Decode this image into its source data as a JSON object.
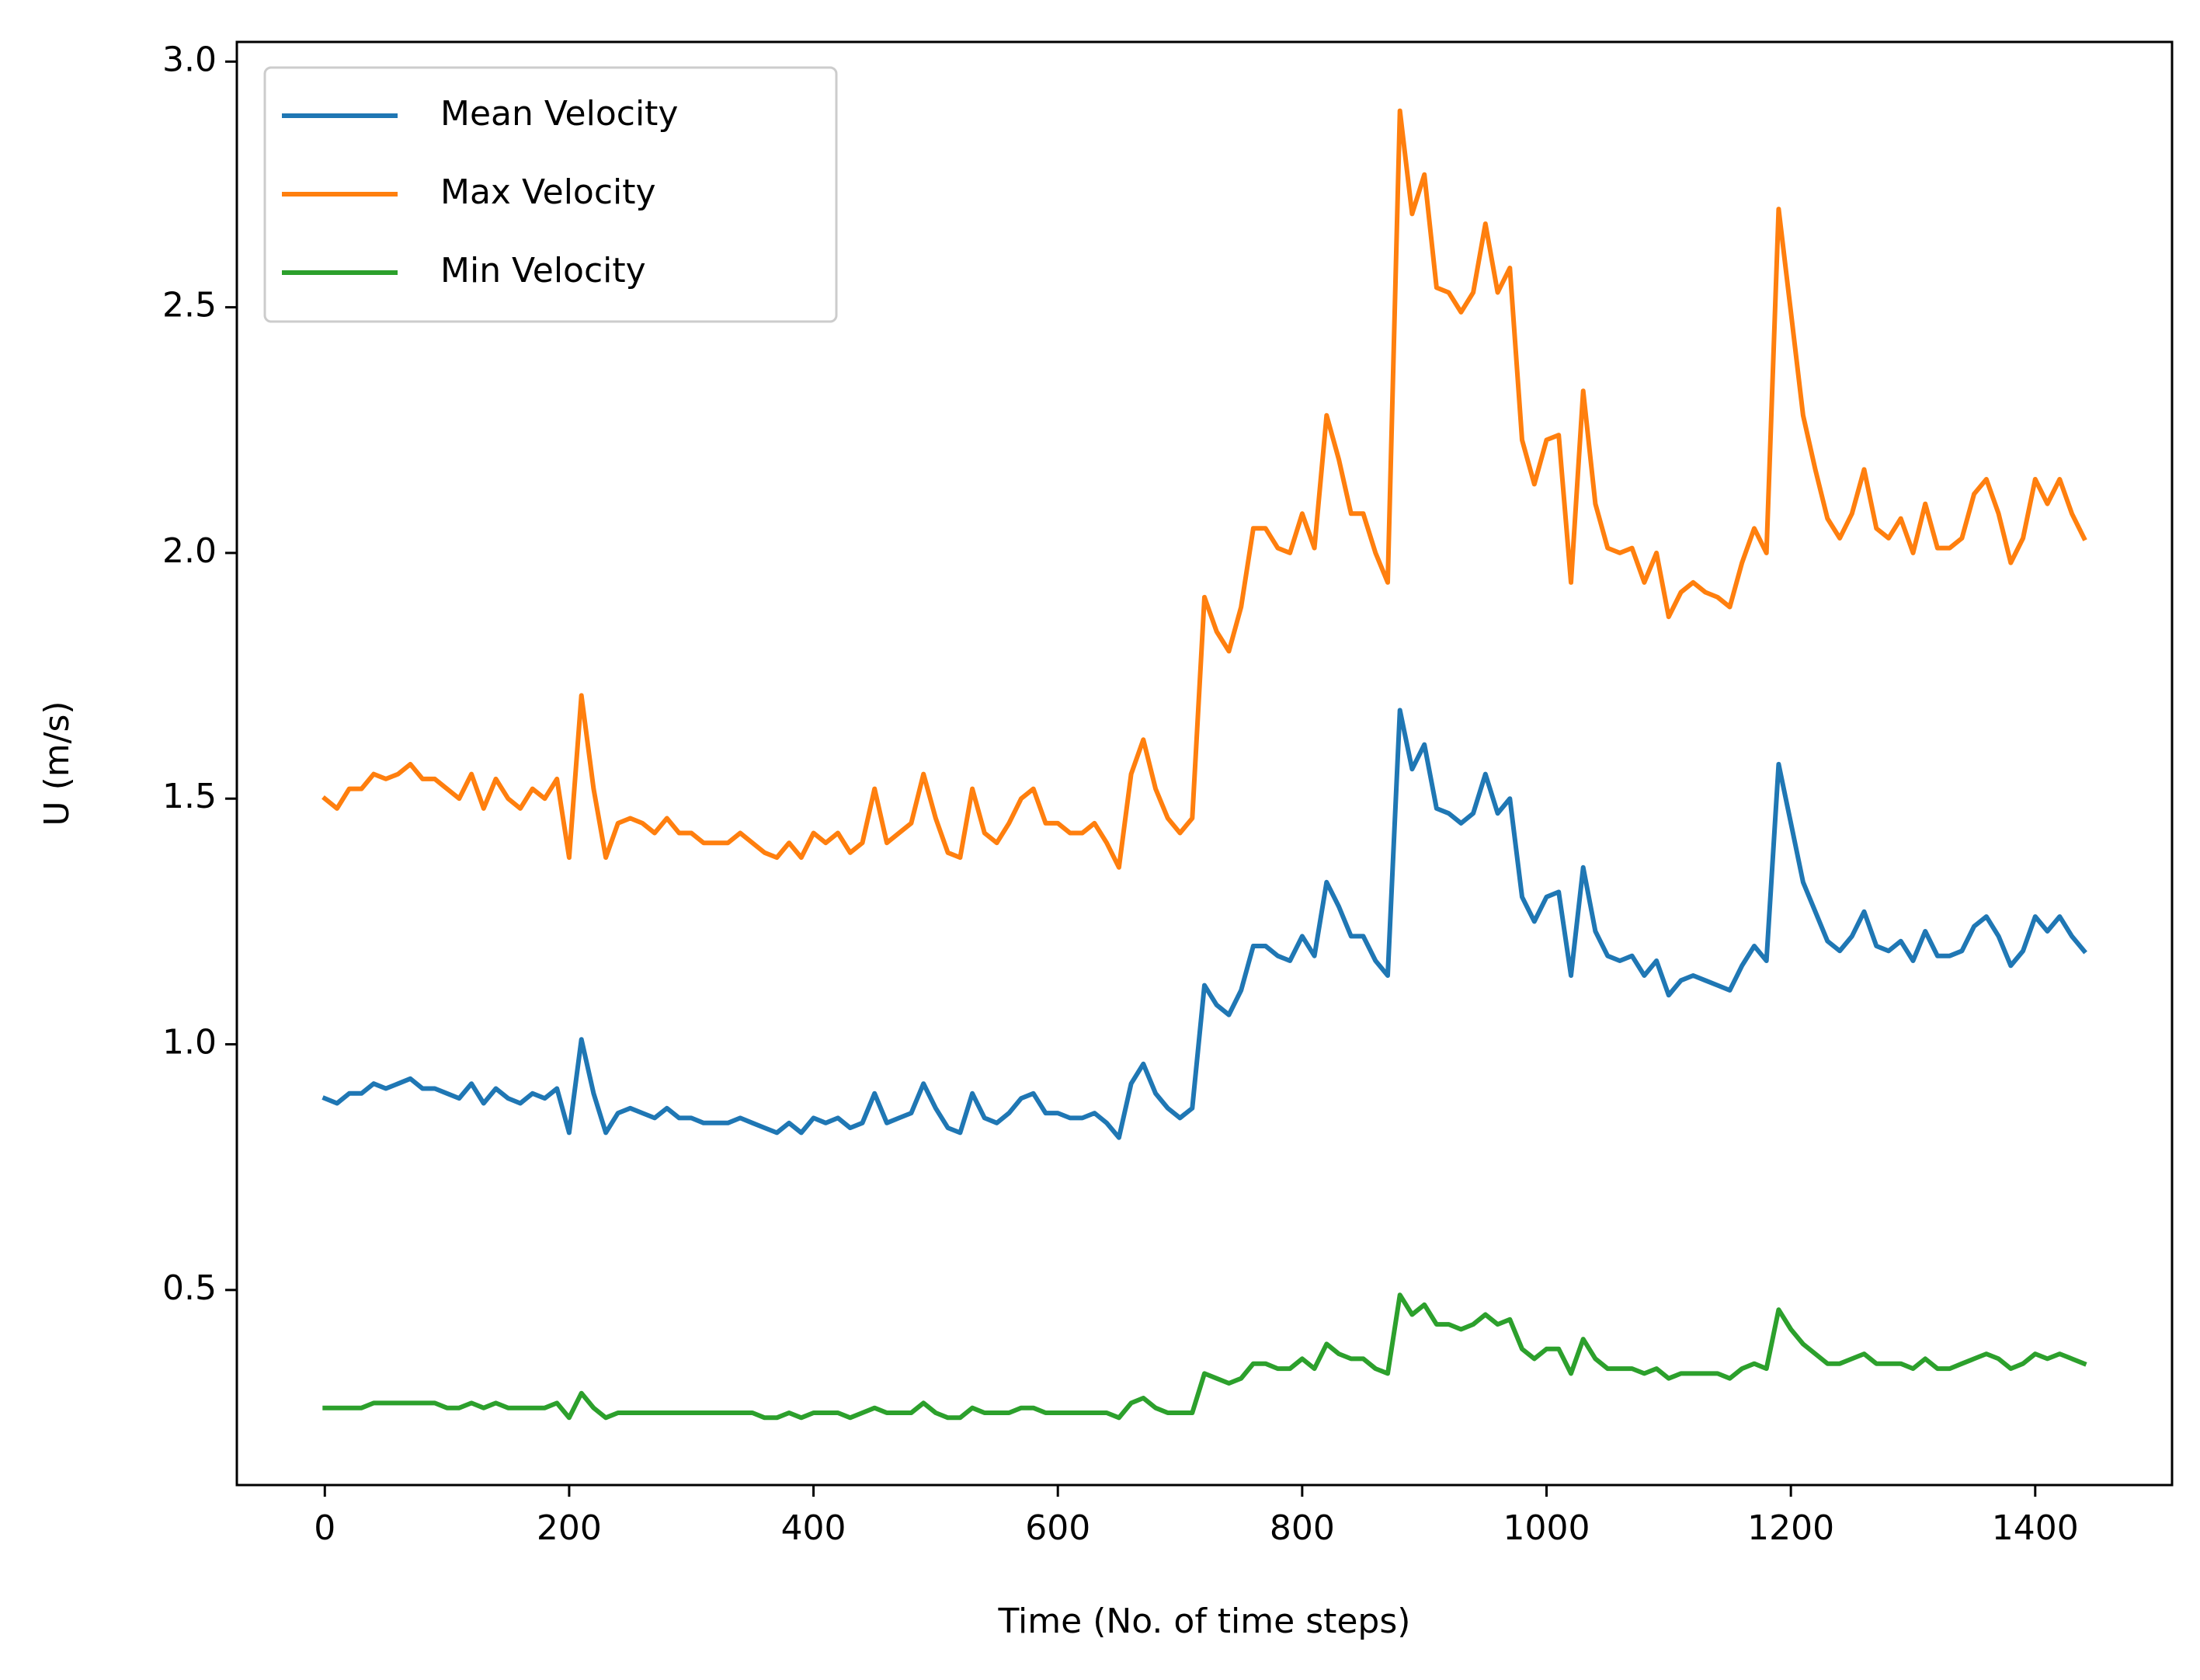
{
  "chart_data": {
    "type": "line",
    "x_label": "Time (No. of time steps)",
    "y_label": "U (m/s)",
    "x": [
      0,
      10,
      20,
      30,
      40,
      50,
      60,
      70,
      80,
      90,
      100,
      110,
      120,
      130,
      140,
      150,
      160,
      170,
      180,
      190,
      200,
      210,
      220,
      230,
      240,
      250,
      260,
      270,
      280,
      290,
      300,
      310,
      320,
      330,
      340,
      350,
      360,
      370,
      380,
      390,
      400,
      410,
      420,
      430,
      440,
      450,
      460,
      470,
      480,
      490,
      500,
      510,
      520,
      530,
      540,
      550,
      560,
      570,
      580,
      590,
      600,
      610,
      620,
      630,
      640,
      650,
      660,
      670,
      680,
      690,
      700,
      710,
      720,
      730,
      740,
      750,
      760,
      770,
      780,
      790,
      800,
      810,
      820,
      830,
      840,
      850,
      860,
      870,
      880,
      890,
      900,
      910,
      920,
      930,
      940,
      950,
      960,
      970,
      980,
      990,
      1000,
      1010,
      1020,
      1030,
      1040,
      1050,
      1060,
      1070,
      1080,
      1090,
      1100,
      1110,
      1120,
      1130,
      1140,
      1150,
      1160,
      1170,
      1180,
      1190,
      1200,
      1210,
      1220,
      1230,
      1240,
      1250,
      1260,
      1270,
      1280,
      1290,
      1300,
      1310,
      1320,
      1330,
      1340,
      1350,
      1360,
      1370,
      1380,
      1390,
      1400,
      1410,
      1420,
      1430,
      1440
    ],
    "series": [
      {
        "name": "Mean Velocity",
        "color": "#1f77b4",
        "values": [
          0.89,
          0.88,
          0.9,
          0.9,
          0.92,
          0.91,
          0.92,
          0.93,
          0.91,
          0.91,
          0.9,
          0.89,
          0.92,
          0.88,
          0.91,
          0.89,
          0.88,
          0.9,
          0.89,
          0.91,
          0.82,
          1.01,
          0.9,
          0.82,
          0.86,
          0.87,
          0.86,
          0.85,
          0.87,
          0.85,
          0.85,
          0.84,
          0.84,
          0.84,
          0.85,
          0.84,
          0.83,
          0.82,
          0.84,
          0.82,
          0.85,
          0.84,
          0.85,
          0.83,
          0.84,
          0.9,
          0.84,
          0.85,
          0.86,
          0.92,
          0.87,
          0.83,
          0.82,
          0.9,
          0.85,
          0.84,
          0.86,
          0.89,
          0.9,
          0.86,
          0.86,
          0.85,
          0.85,
          0.86,
          0.84,
          0.81,
          0.92,
          0.96,
          0.9,
          0.87,
          0.85,
          0.87,
          1.12,
          1.08,
          1.06,
          1.11,
          1.2,
          1.2,
          1.18,
          1.17,
          1.22,
          1.18,
          1.33,
          1.28,
          1.22,
          1.22,
          1.17,
          1.14,
          1.68,
          1.56,
          1.61,
          1.48,
          1.47,
          1.45,
          1.47,
          1.55,
          1.47,
          1.5,
          1.3,
          1.25,
          1.3,
          1.31,
          1.14,
          1.36,
          1.23,
          1.18,
          1.17,
          1.18,
          1.14,
          1.17,
          1.1,
          1.13,
          1.14,
          1.13,
          1.12,
          1.11,
          1.16,
          1.2,
          1.17,
          1.57,
          1.45,
          1.33,
          1.27,
          1.21,
          1.19,
          1.22,
          1.27,
          1.2,
          1.19,
          1.21,
          1.17,
          1.23,
          1.18,
          1.18,
          1.19,
          1.24,
          1.26,
          1.22,
          1.16,
          1.19,
          1.26,
          1.23,
          1.26,
          1.22,
          1.19
        ]
      },
      {
        "name": "Max Velocity",
        "color": "#ff7f0e",
        "values": [
          1.5,
          1.48,
          1.52,
          1.52,
          1.55,
          1.54,
          1.55,
          1.57,
          1.54,
          1.54,
          1.52,
          1.5,
          1.55,
          1.48,
          1.54,
          1.5,
          1.48,
          1.52,
          1.5,
          1.54,
          1.38,
          1.71,
          1.52,
          1.38,
          1.45,
          1.46,
          1.45,
          1.43,
          1.46,
          1.43,
          1.43,
          1.41,
          1.41,
          1.41,
          1.43,
          1.41,
          1.39,
          1.38,
          1.41,
          1.38,
          1.43,
          1.41,
          1.43,
          1.39,
          1.41,
          1.52,
          1.41,
          1.43,
          1.45,
          1.55,
          1.46,
          1.39,
          1.38,
          1.52,
          1.43,
          1.41,
          1.45,
          1.5,
          1.52,
          1.45,
          1.45,
          1.43,
          1.43,
          1.45,
          1.41,
          1.36,
          1.55,
          1.62,
          1.52,
          1.46,
          1.43,
          1.46,
          1.91,
          1.84,
          1.8,
          1.89,
          2.05,
          2.05,
          2.01,
          2.0,
          2.08,
          2.01,
          2.28,
          2.19,
          2.08,
          2.08,
          2.0,
          1.94,
          2.9,
          2.69,
          2.77,
          2.54,
          2.53,
          2.49,
          2.53,
          2.67,
          2.53,
          2.58,
          2.23,
          2.14,
          2.23,
          2.24,
          1.94,
          2.33,
          2.1,
          2.01,
          2.0,
          2.01,
          1.94,
          2.0,
          1.87,
          1.92,
          1.94,
          1.92,
          1.91,
          1.89,
          1.98,
          2.05,
          2.0,
          2.7,
          2.49,
          2.28,
          2.17,
          2.07,
          2.03,
          2.08,
          2.17,
          2.05,
          2.03,
          2.07,
          2.0,
          2.1,
          2.01,
          2.01,
          2.03,
          2.12,
          2.15,
          2.08,
          1.98,
          2.03,
          2.15,
          2.1,
          2.15,
          2.08,
          2.03
        ]
      },
      {
        "name": "Min Velocity",
        "color": "#2ca02c",
        "values": [
          0.26,
          0.26,
          0.26,
          0.26,
          0.27,
          0.27,
          0.27,
          0.27,
          0.27,
          0.27,
          0.26,
          0.26,
          0.27,
          0.26,
          0.27,
          0.26,
          0.26,
          0.26,
          0.26,
          0.27,
          0.24,
          0.29,
          0.26,
          0.24,
          0.25,
          0.25,
          0.25,
          0.25,
          0.25,
          0.25,
          0.25,
          0.25,
          0.25,
          0.25,
          0.25,
          0.25,
          0.24,
          0.24,
          0.25,
          0.24,
          0.25,
          0.25,
          0.25,
          0.24,
          0.25,
          0.26,
          0.25,
          0.25,
          0.25,
          0.27,
          0.25,
          0.24,
          0.24,
          0.26,
          0.25,
          0.25,
          0.25,
          0.26,
          0.26,
          0.25,
          0.25,
          0.25,
          0.25,
          0.25,
          0.25,
          0.24,
          0.27,
          0.28,
          0.26,
          0.25,
          0.25,
          0.25,
          0.33,
          0.32,
          0.31,
          0.32,
          0.35,
          0.35,
          0.34,
          0.34,
          0.36,
          0.34,
          0.39,
          0.37,
          0.36,
          0.36,
          0.34,
          0.33,
          0.49,
          0.45,
          0.47,
          0.43,
          0.43,
          0.42,
          0.43,
          0.45,
          0.43,
          0.44,
          0.38,
          0.36,
          0.38,
          0.38,
          0.33,
          0.4,
          0.36,
          0.34,
          0.34,
          0.34,
          0.33,
          0.34,
          0.32,
          0.33,
          0.33,
          0.33,
          0.33,
          0.32,
          0.34,
          0.35,
          0.34,
          0.46,
          0.42,
          0.39,
          0.37,
          0.35,
          0.35,
          0.36,
          0.37,
          0.35,
          0.35,
          0.35,
          0.34,
          0.36,
          0.34,
          0.34,
          0.35,
          0.36,
          0.37,
          0.36,
          0.34,
          0.35,
          0.37,
          0.36,
          0.37,
          0.36,
          0.35
        ]
      }
    ],
    "xlim": [
      -72,
      1512
    ],
    "ylim": [
      0.103,
      3.04
    ],
    "xticks": [
      0,
      200,
      400,
      600,
      800,
      1000,
      1200,
      1400
    ],
    "yticks": [
      {
        "value": 0.5,
        "label": "0.5"
      },
      {
        "value": 1.0,
        "label": "1.0"
      },
      {
        "value": 1.5,
        "label": "1.5"
      },
      {
        "value": 2.0,
        "label": "2.0"
      },
      {
        "value": 2.5,
        "label": "2.5"
      },
      {
        "value": 3.0,
        "label": "3.0"
      }
    ],
    "grid": false,
    "legend": "upper left"
  }
}
